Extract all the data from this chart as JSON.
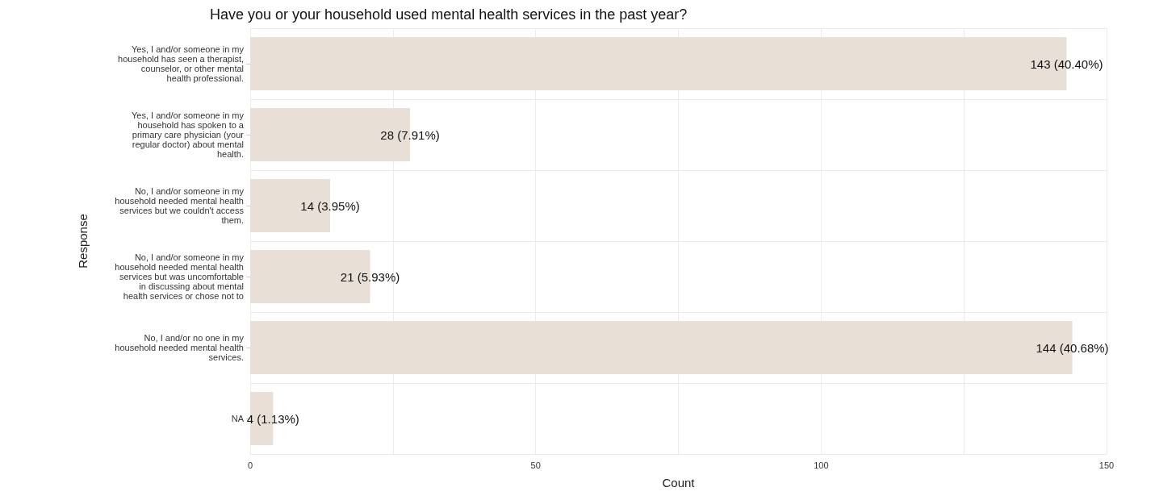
{
  "chart_data": {
    "type": "bar",
    "orientation": "horizontal",
    "title": "Have you or your household used mental health services in the past year?",
    "xlabel": "Count",
    "ylabel": "Response",
    "categories": [
      "Yes, I and/or someone in my household has seen a therapist, counselor, or other mental health professional.",
      "Yes, I and/or someone in my household has spoken to a primary care physician (your regular doctor) about mental health.",
      "No, I and/or someone in my household needed mental health services but we couldn't access them.",
      "No, I and/or someone in my household needed mental health services but was uncomfortable in discussing about mental health services or chose not to",
      "No, I and/or no one in my household needed mental health services.",
      "NA"
    ],
    "values": [
      143,
      28,
      14,
      21,
      144,
      4
    ],
    "value_labels": [
      "143 (40.40%)",
      "28 (7.91%)",
      "14 (3.95%)",
      "21 (5.93%)",
      "144 (40.68%)",
      "4 (1.13%)"
    ],
    "color": "#e8e0d7",
    "xlim": [
      0,
      150
    ],
    "xticks": [
      0,
      {
        "value": 25,
        "label": null
      },
      50,
      {
        "value": 75,
        "label": null
      },
      100,
      {
        "value": 125,
        "label": null
      },
      150
    ],
    "grid": true
  }
}
